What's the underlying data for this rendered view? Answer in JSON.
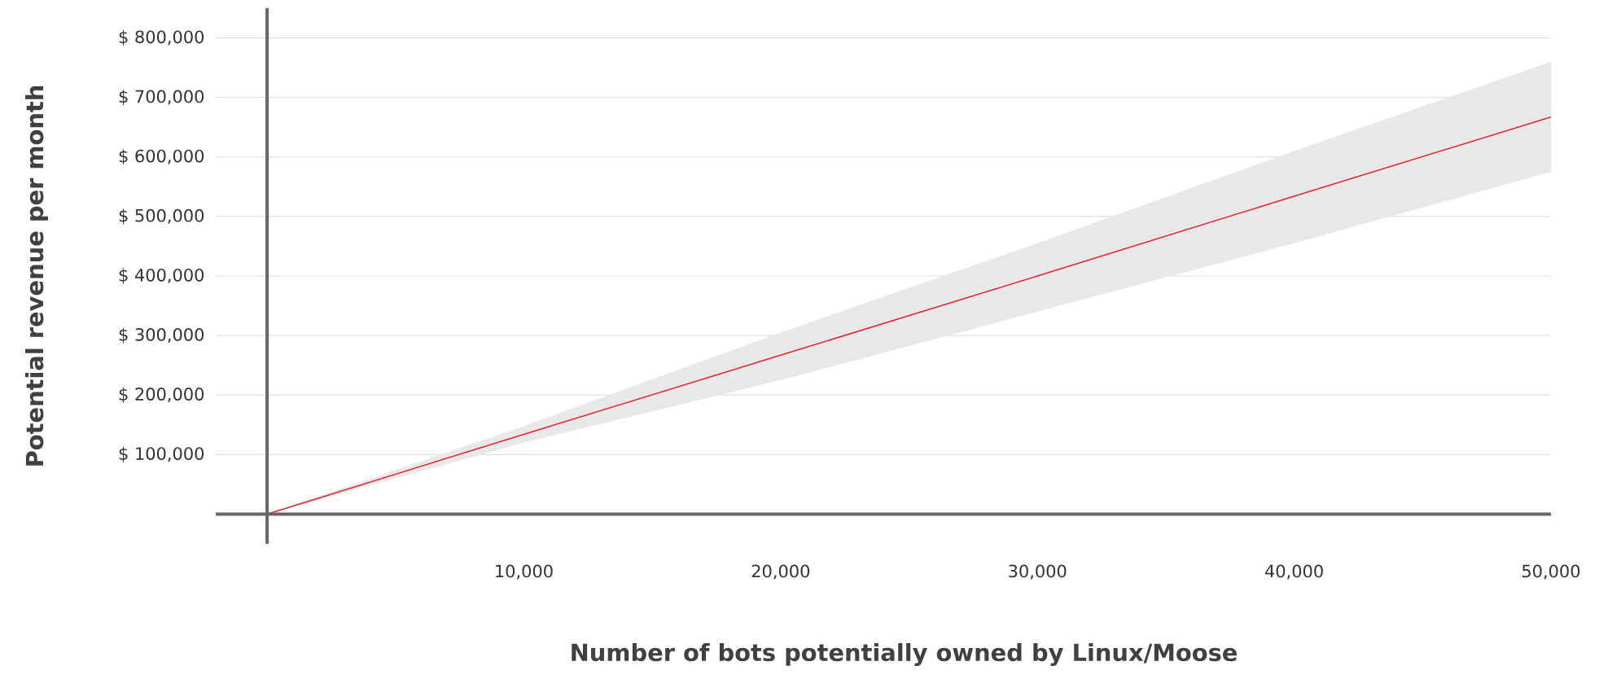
{
  "chart_data": {
    "type": "line",
    "xlabel": "Number of bots potentially owned by Linux/Moose",
    "ylabel": "Potential revenue per month",
    "series": [
      {
        "color": "#e8202a",
        "x": [
          0,
          10000,
          20000,
          30000,
          40000,
          50000
        ],
        "values": [
          0,
          134000,
          267000,
          400000,
          534000,
          667000
        ],
        "lower": [
          0,
          120000,
          225000,
          340000,
          455000,
          575000
        ],
        "upper": [
          0,
          148000,
          305000,
          455000,
          610000,
          760000
        ]
      }
    ],
    "xlim": [
      -2000,
      50000
    ],
    "ylim": [
      -50000,
      850000
    ],
    "xticks": [
      {
        "value": 10000,
        "label": "10,000"
      },
      {
        "value": 20000,
        "label": "20,000"
      },
      {
        "value": 30000,
        "label": "30,000"
      },
      {
        "value": 40000,
        "label": "40,000"
      },
      {
        "value": 50000,
        "label": "50,000"
      }
    ],
    "yticks": [
      {
        "value": 100000,
        "label": "$ 100,000"
      },
      {
        "value": 200000,
        "label": "$ 200,000"
      },
      {
        "value": 300000,
        "label": "$ 300,000"
      },
      {
        "value": 400000,
        "label": "$ 400,000"
      },
      {
        "value": 500000,
        "label": "$ 500,000"
      },
      {
        "value": 600000,
        "label": "$ 600,000"
      },
      {
        "value": 700000,
        "label": "$ 700,000"
      },
      {
        "value": 800000,
        "label": "$ 800,000"
      }
    ],
    "grid": "y",
    "marker": "none",
    "line_style": "solid"
  }
}
